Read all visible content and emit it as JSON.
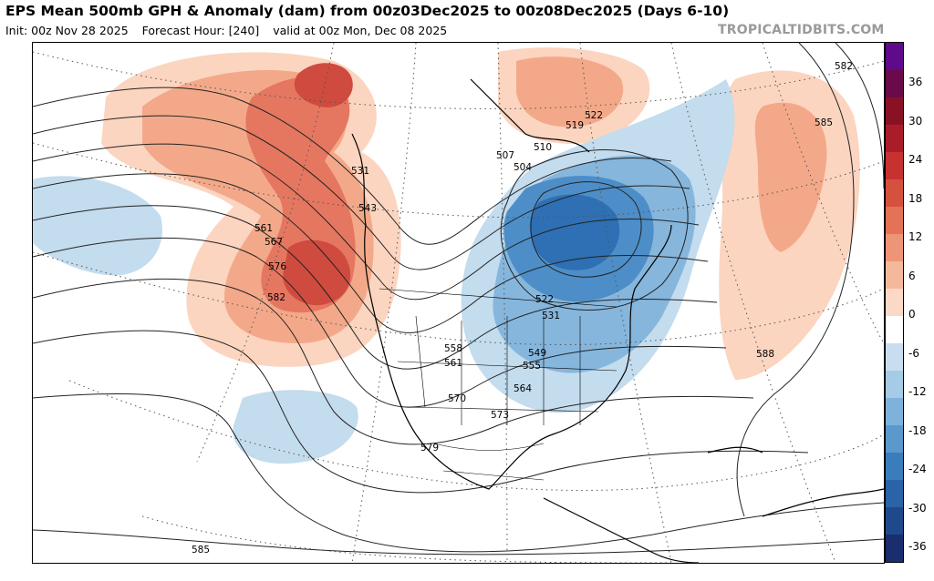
{
  "header": {
    "title": "EPS Mean 500mb GPH & Anomaly (dam) from 00z03Dec2025 to 00z08Dec2025 (Days 6-10)",
    "init": "Init: 00z Nov 28 2025",
    "forecast_hour": "Forecast Hour: [240]",
    "valid": "valid at 00z Mon, Dec 08 2025",
    "source": "TROPICALTIDBITS.COM"
  },
  "colorbar": {
    "ticks": [
      "36",
      "30",
      "24",
      "18",
      "12",
      "6",
      "0",
      "-6",
      "-12",
      "-18",
      "-24",
      "-30",
      "-36"
    ],
    "colors": [
      "#1a2d6e",
      "#1e4a8c",
      "#2a63a8",
      "#3a7dbd",
      "#5b98cc",
      "#7fb2da",
      "#a6cbe6",
      "#c8def0",
      "#ffffff",
      "#fbd9c6",
      "#f6b89b",
      "#ef9577",
      "#e47257",
      "#d6503e",
      "#c73130",
      "#ab1c2a",
      "#8a1024",
      "#6a0a4a",
      "#5e0a8a"
    ],
    "zero_color": "#ffffff"
  },
  "anomaly_colors": {
    "pos_light": "#fbd5c0",
    "pos_mid": "#f3a989",
    "pos_strong": "#e57760",
    "pos_core": "#cf4b3f",
    "neg_light": "#c3dcee",
    "neg_mid": "#86b6dc",
    "neg_strong": "#4d8ec8",
    "neg_core": "#2f6fb3"
  },
  "contour_labels": [
    "531",
    "543",
    "561",
    "567",
    "576",
    "582",
    "507",
    "504",
    "510",
    "519",
    "522",
    "522",
    "531",
    "549",
    "555",
    "558",
    "561",
    "564",
    "570",
    "573",
    "579",
    "585",
    "588",
    "585",
    "582"
  ]
}
